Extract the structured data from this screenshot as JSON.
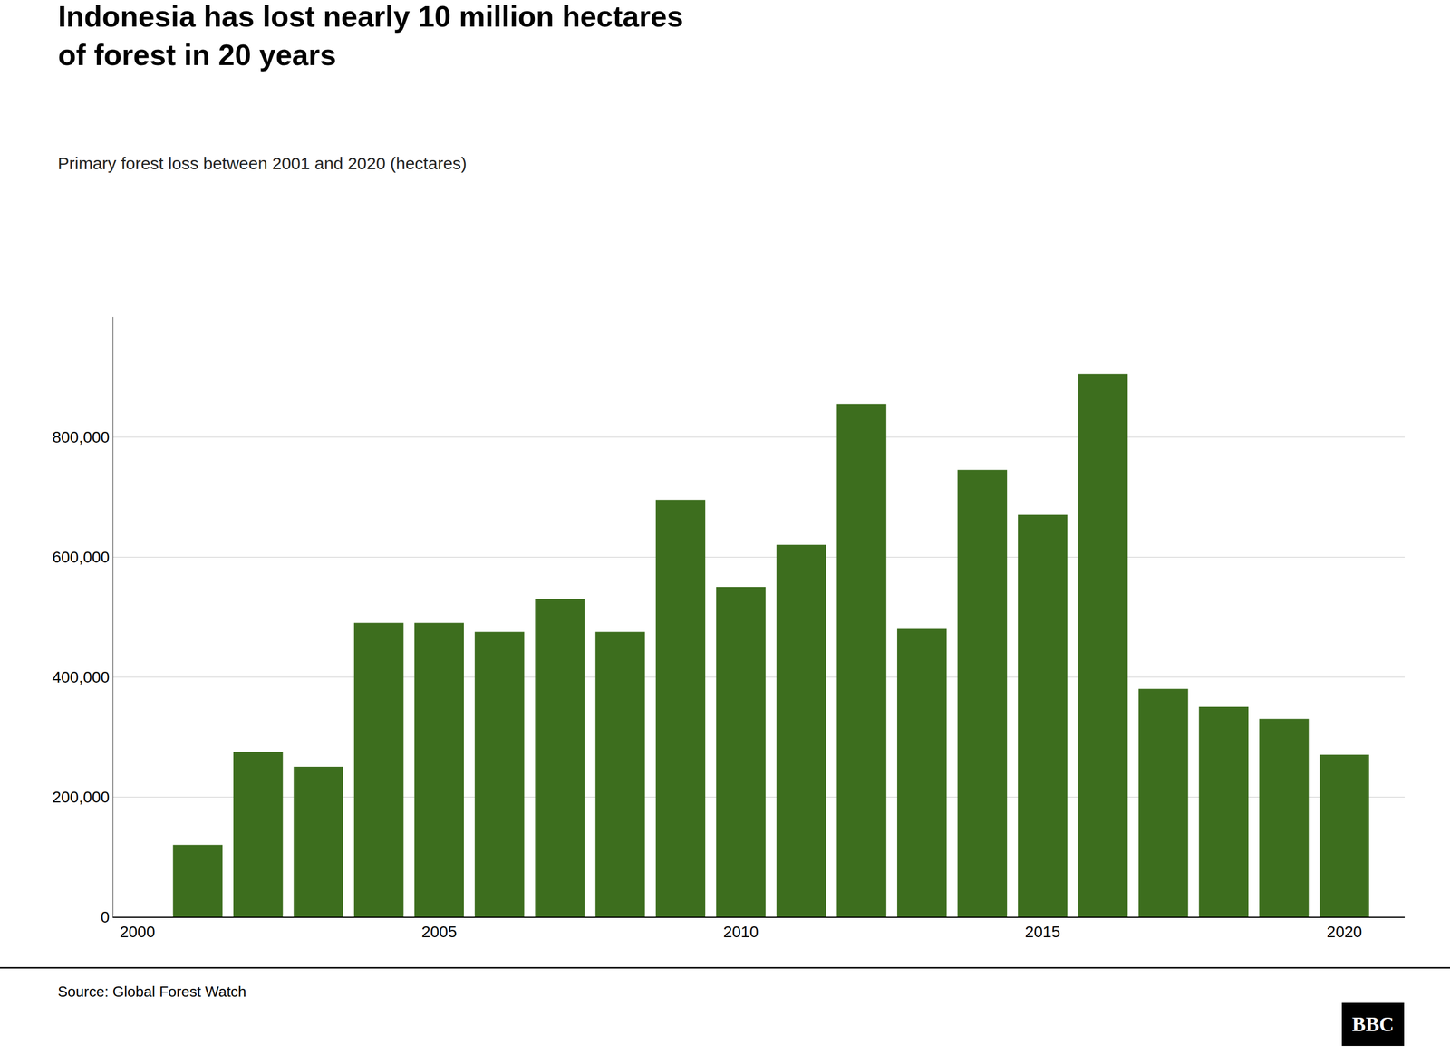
{
  "chart_data": {
    "type": "bar",
    "title": "Indonesia has lost nearly 10 million hectares\nof forest in 20 years",
    "subtitle": "Primary forest loss between 2001 and 2020 (hectares)",
    "source": "Source: Global Forest Watch",
    "annotations": [
      "BBC"
    ],
    "x": [
      2001,
      2002,
      2003,
      2004,
      2005,
      2006,
      2007,
      2008,
      2009,
      2010,
      2011,
      2012,
      2013,
      2014,
      2015,
      2016,
      2017,
      2018,
      2019,
      2020
    ],
    "values": [
      120000,
      275000,
      250000,
      490000,
      490000,
      475000,
      530000,
      475000,
      695000,
      550000,
      620000,
      855000,
      480000,
      745000,
      670000,
      905000,
      380000,
      350000,
      330000,
      270000
    ],
    "color": "#3d6e1e",
    "xlim": [
      1999.6,
      2021.0
    ],
    "xticks": [
      2000,
      2005,
      2010,
      2015,
      2020
    ],
    "ylim": [
      0,
      1000000
    ],
    "yticks": [
      0,
      {
        "value": 200000,
        "label": "200,000"
      },
      {
        "value": 400000,
        "label": "400,000"
      },
      {
        "value": 600000,
        "label": "600,000"
      },
      {
        "value": 800000,
        "label": "800,000"
      }
    ],
    "grid": true
  }
}
